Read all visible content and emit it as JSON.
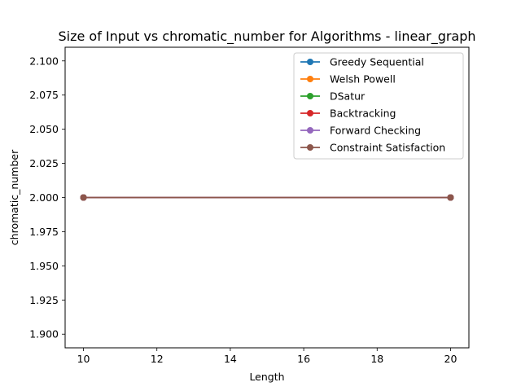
{
  "chart_data": {
    "type": "line",
    "title": "Size of Input vs chromatic_number for Algorithms - linear_graph",
    "xlabel": "Length",
    "ylabel": "chromatic_number",
    "x": [
      10,
      20
    ],
    "xlim": [
      9.5,
      20.5
    ],
    "ylim": [
      1.89,
      2.11
    ],
    "xticks": [
      10,
      12,
      14,
      16,
      18,
      20
    ],
    "yticks": [
      1.9,
      1.925,
      1.95,
      1.975,
      2.0,
      2.025,
      2.05,
      2.075,
      2.1
    ],
    "ytick_labels": [
      "1.900",
      "1.925",
      "1.950",
      "1.975",
      "2.000",
      "2.025",
      "2.050",
      "2.075",
      "2.100"
    ],
    "grid": false,
    "legend_position": "top-right",
    "series": [
      {
        "name": "Greedy Sequential",
        "values": [
          2,
          2
        ],
        "color": "#1f77b4"
      },
      {
        "name": "Welsh Powell",
        "values": [
          2,
          2
        ],
        "color": "#ff7f0e"
      },
      {
        "name": "DSatur",
        "values": [
          2,
          2
        ],
        "color": "#2ca02c"
      },
      {
        "name": "Backtracking",
        "values": [
          2,
          2
        ],
        "color": "#d62728"
      },
      {
        "name": "Forward Checking",
        "values": [
          2,
          2
        ],
        "color": "#9467bd"
      },
      {
        "name": "Constraint Satisfaction",
        "values": [
          2,
          2
        ],
        "color": "#8c564b"
      }
    ]
  }
}
